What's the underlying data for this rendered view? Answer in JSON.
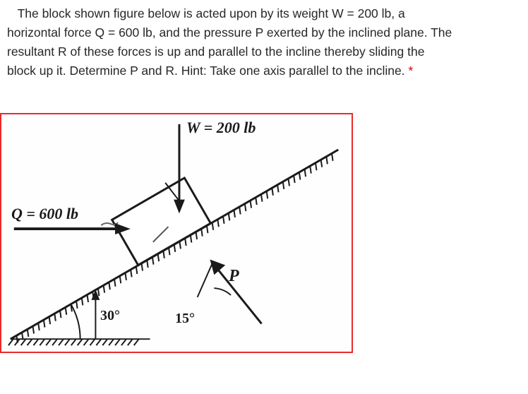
{
  "problem": {
    "line1_pre": "The block shown figure below is acted upon by its weight W = ",
    "W_value": "200 lb",
    "line1_post": ", a",
    "line2_pre": "horizontal force Q = ",
    "Q_value": "600 lb",
    "line2_post": ", and the pressure P exerted by the inclined plane. The",
    "line3": "resultant R of these forces is up and parallel to the incline thereby sliding the",
    "line4_main": "block up it. Determine P and R. Hint: Take one axis parallel to the incline. ",
    "asterisk": "*"
  },
  "figure": {
    "W_label": "W = 200 lb",
    "Q_label": "Q = 600 lb",
    "P_label": "P",
    "angle_incline": "30°",
    "angle_P": "15°",
    "border_color": "#ea2a2a",
    "incline_angle_deg": 30,
    "block": {
      "width": 120,
      "height": 75,
      "stroke": "#1a1a1a",
      "fill": "#ffffff"
    },
    "hatch": {
      "stroke": "#1a1a1a",
      "spacing": 9,
      "length": 10
    },
    "arrows": {
      "stroke": "#1a1a1a"
    },
    "label_fontsize_main": 22,
    "label_fontsize_small": 20
  }
}
